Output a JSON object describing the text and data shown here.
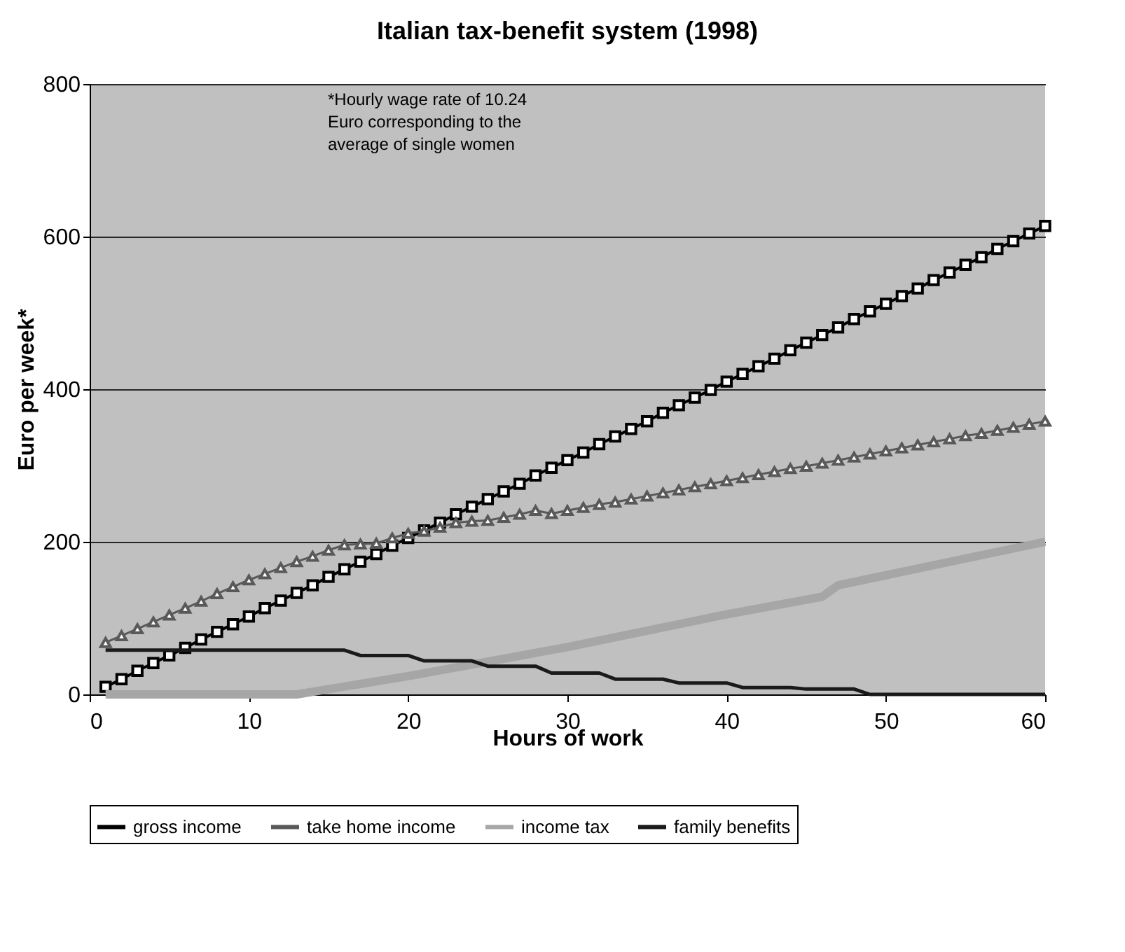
{
  "chart_data": {
    "type": "line",
    "title": "Italian tax-benefit system (1998)",
    "xlabel": "Hours of work",
    "ylabel": "Euro per week*",
    "annotations": [
      "*Hourly wage rate of 10.24 Euro corresponding  to the average of single women"
    ],
    "xlim": [
      0,
      60
    ],
    "xticks": [
      0,
      10,
      20,
      30,
      40,
      50,
      60
    ],
    "ylim": [
      0,
      800
    ],
    "yticks": [
      0,
      200,
      400,
      600,
      800
    ],
    "grid": "y",
    "legend": "bottom",
    "series": [
      {
        "name": "gross income",
        "color": "#000000",
        "marker": "square",
        "x": [
          1,
          2,
          3,
          4,
          5,
          6,
          7,
          8,
          9,
          10,
          11,
          12,
          13,
          14,
          15,
          16,
          17,
          18,
          19,
          20,
          21,
          22,
          23,
          24,
          25,
          26,
          27,
          28,
          29,
          30,
          31,
          32,
          33,
          34,
          35,
          36,
          37,
          38,
          39,
          40,
          41,
          42,
          43,
          44,
          45,
          46,
          47,
          48,
          49,
          50,
          51,
          52,
          53,
          54,
          55,
          56,
          57,
          58,
          59,
          60
        ],
        "values": [
          10,
          20,
          31,
          41,
          51,
          61,
          72,
          82,
          92,
          102,
          113,
          123,
          133,
          143,
          154,
          164,
          174,
          184,
          195,
          205,
          215,
          225,
          236,
          246,
          256,
          266,
          276,
          287,
          297,
          307,
          317,
          328,
          338,
          348,
          358,
          369,
          379,
          389,
          399,
          410,
          420,
          430,
          440,
          451,
          461,
          471,
          481,
          492,
          502,
          512,
          522,
          532,
          543,
          553,
          563,
          573,
          584,
          594,
          604,
          614
        ]
      },
      {
        "name": "take home income",
        "color": "#595959",
        "marker": "triangle",
        "x": [
          1,
          2,
          3,
          4,
          5,
          6,
          7,
          8,
          9,
          10,
          11,
          12,
          13,
          14,
          15,
          16,
          17,
          18,
          19,
          20,
          21,
          22,
          23,
          24,
          25,
          26,
          27,
          28,
          29,
          30,
          31,
          32,
          33,
          34,
          35,
          36,
          37,
          38,
          39,
          40,
          41,
          42,
          43,
          44,
          45,
          46,
          47,
          48,
          49,
          50,
          51,
          52,
          53,
          54,
          55,
          56,
          57,
          58,
          59,
          60
        ],
        "values": [
          68,
          77,
          86,
          95,
          104,
          113,
          122,
          132,
          141,
          150,
          158,
          166,
          174,
          181,
          189,
          196,
          197,
          198,
          205,
          211,
          214,
          219,
          225,
          227,
          228,
          232,
          236,
          241,
          237,
          241,
          245,
          249,
          252,
          256,
          260,
          264,
          268,
          272,
          276,
          280,
          284,
          288,
          292,
          296,
          299,
          303,
          307,
          311,
          315,
          319,
          323,
          327,
          331,
          335,
          339,
          342,
          346,
          350,
          354,
          358
        ]
      },
      {
        "name": "income tax",
        "color": "#a6a6a6",
        "marker": "none",
        "x": [
          1,
          13,
          20,
          30,
          40,
          46,
          47,
          60
        ],
        "values": [
          0,
          0,
          24,
          62,
          105,
          128,
          143,
          200
        ]
      },
      {
        "name": "family benefits",
        "color": "#1a1a1a",
        "marker": "none",
        "x": [
          1,
          16,
          17,
          20,
          21,
          24,
          25,
          28,
          29,
          32,
          33,
          36,
          37,
          40,
          41,
          44,
          45,
          48,
          49,
          60
        ],
        "values": [
          58,
          58,
          51,
          51,
          44,
          44,
          37,
          37,
          28,
          28,
          20,
          20,
          15,
          15,
          9,
          9,
          7,
          7,
          0,
          0
        ]
      }
    ]
  }
}
